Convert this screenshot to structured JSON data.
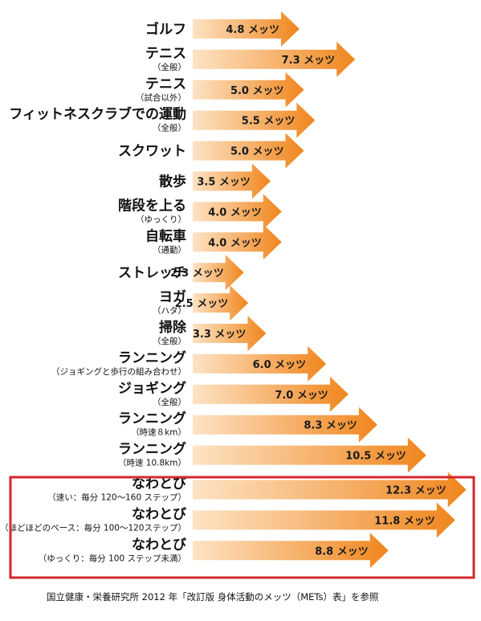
{
  "chart_data": {
    "type": "bar",
    "orientation": "horizontal",
    "bar_style": "arrow",
    "value_unit": "メッツ",
    "categories": [
      {
        "name": "ゴルフ",
        "sub": ""
      },
      {
        "name": "テニス",
        "sub": "（全般）"
      },
      {
        "name": "テニス",
        "sub": "（試合以外）"
      },
      {
        "name": "フィットネスクラブでの運動",
        "sub": "（全般）"
      },
      {
        "name": "スクワット",
        "sub": ""
      },
      {
        "name": "散歩",
        "sub": ""
      },
      {
        "name": "階段を上る",
        "sub": "（ゆっくり）"
      },
      {
        "name": "自転車",
        "sub": "（通勤）"
      },
      {
        "name": "ストレッチ",
        "sub": ""
      },
      {
        "name": "ヨガ",
        "sub": "（ハタ）"
      },
      {
        "name": "掃除",
        "sub": "（全般）"
      },
      {
        "name": "ランニング",
        "sub": "（ジョギングと歩行の組み合わせ）"
      },
      {
        "name": "ジョギング",
        "sub": "（全般）"
      },
      {
        "name": "ランニング",
        "sub": "（時速８km）"
      },
      {
        "name": "ランニング",
        "sub": "（時速 10.8km）"
      },
      {
        "name": "なわとび",
        "sub": "（速い：毎分 120〜160 ステップ）"
      },
      {
        "name": "なわとび",
        "sub": "（ほどほどのペース：毎分 100〜120ステップ）"
      },
      {
        "name": "なわとび",
        "sub": "（ゆっくり：毎分 100 ステップ未満）"
      }
    ],
    "values": [
      4.8,
      7.3,
      5.0,
      5.5,
      5.0,
      3.5,
      4.0,
      4.0,
      2.3,
      2.5,
      3.3,
      6.0,
      7.0,
      8.3,
      10.5,
      12.3,
      11.8,
      8.8
    ],
    "value_labels": [
      "4.8 メッツ",
      "7.3 メッツ",
      "5.0 メッツ",
      "5.5 メッツ",
      "5.0 メッツ",
      "3.5 メッツ",
      "4.0 メッツ",
      "4.0 メッツ",
      "2.3 メッツ",
      "2.5 メッツ",
      "3.3 メッツ",
      "6.0 メッツ",
      "7.0 メッツ",
      "8.3 メッツ",
      "10.5 メッツ",
      "12.3 メッツ",
      "11.8 メッツ",
      "8.8 メッツ"
    ],
    "highlighted": [
      15,
      16,
      17
    ],
    "colors": {
      "bar_start": "#fde3c4",
      "bar_end": "#f0861e",
      "highlight_border": "#d6262e",
      "text": "#111111"
    },
    "title": "",
    "xlabel": "",
    "ylabel": "",
    "grid": false,
    "legend": "none"
  },
  "footnote": "国立健康・栄養研究所 2012 年「改訂版 身体活動のメッツ（METs）表」を参照"
}
